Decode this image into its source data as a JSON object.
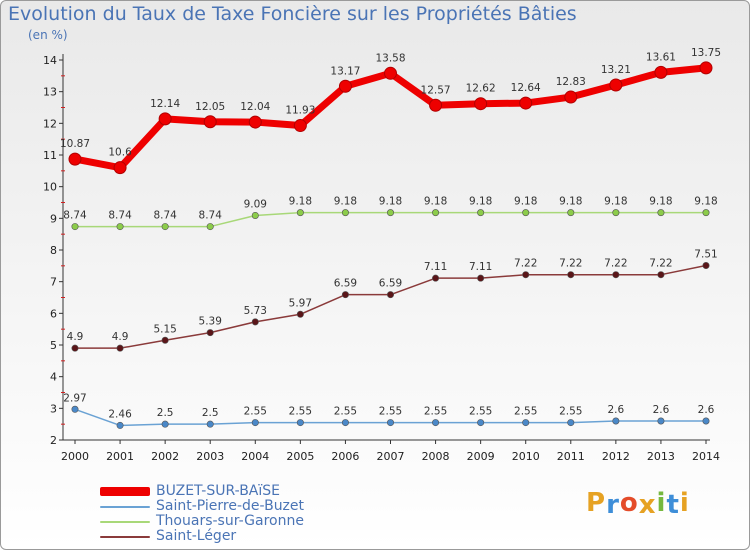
{
  "title": "Evolution du Taux de Taxe Foncière sur les Propriétés Bâties",
  "subtitle": "(en %)",
  "logo": {
    "letters": [
      "P",
      "r",
      "o",
      "x",
      "i",
      "t",
      "i"
    ],
    "colors": [
      "#e6a223",
      "#3e8ed8",
      "#e44c2a",
      "#e6a223",
      "#76b83e",
      "#3e8ed8",
      "#e6a223"
    ]
  },
  "chart_data": {
    "type": "line",
    "title": "Evolution du Taux de Taxe Foncière sur les Propriétés Bâties",
    "ylabel": "(en %)",
    "xlabel": "",
    "x": [
      "2000",
      "2001",
      "2002",
      "2003",
      "2004",
      "2005",
      "2006",
      "2007",
      "2008",
      "2009",
      "2010",
      "2011",
      "2012",
      "2013",
      "2014"
    ],
    "ylim": [
      2,
      14
    ],
    "yticks": [
      "2",
      "3",
      "4",
      "5",
      "6",
      "7",
      "8",
      "9",
      "10",
      "11",
      "12",
      "13",
      "14"
    ],
    "grid": false,
    "legend_position": "bottom-left",
    "series": [
      {
        "name": "BUZET-SUR-BAïSE",
        "color": "#ee0000",
        "marker_color": "#ee0000",
        "values": [
          10.87,
          10.6,
          12.14,
          12.05,
          12.04,
          11.93,
          13.17,
          13.58,
          12.57,
          12.62,
          12.64,
          12.83,
          13.21,
          13.61,
          13.75
        ],
        "labels": [
          "10.87",
          "10.6",
          "12.14",
          "12.05",
          "12.04",
          "11.93",
          "13.17",
          "13.58",
          "12.57",
          "12.62",
          "12.64",
          "12.83",
          "13.21",
          "13.61",
          "13.75"
        ]
      },
      {
        "name": "Saint-Pierre-de-Buzet",
        "color": "#6aa2d4",
        "marker_color": "#4a88c8",
        "values": [
          2.97,
          2.46,
          2.5,
          2.5,
          2.55,
          2.55,
          2.55,
          2.55,
          2.55,
          2.55,
          2.55,
          2.55,
          2.6,
          2.6,
          2.6
        ],
        "labels": [
          "2.97",
          "2.46",
          "2.5",
          "2.5",
          "2.55",
          "2.55",
          "2.55",
          "2.55",
          "2.55",
          "2.55",
          "2.55",
          "2.55",
          "2.6",
          "2.6",
          "2.6"
        ]
      },
      {
        "name": "Thouars-sur-Garonne",
        "color": "#a8d878",
        "marker_color": "#8ccc4a",
        "values": [
          8.74,
          8.74,
          8.74,
          8.74,
          9.09,
          9.18,
          9.18,
          9.18,
          9.18,
          9.18,
          9.18,
          9.18,
          9.18,
          9.18,
          9.18
        ],
        "labels": [
          "8.74",
          "8.74",
          "8.74",
          "8.74",
          "9.09",
          "9.18",
          "9.18",
          "9.18",
          "9.18",
          "9.18",
          "9.18",
          "9.18",
          "9.18",
          "9.18",
          "9.18"
        ]
      },
      {
        "name": "Saint-Léger",
        "color": "#8a3a3a",
        "marker_color": "#5a1518",
        "values": [
          4.9,
          4.9,
          5.15,
          5.39,
          5.73,
          5.97,
          6.59,
          6.59,
          7.11,
          7.11,
          7.22,
          7.22,
          7.22,
          7.22,
          7.51
        ],
        "labels": [
          "4.9",
          "4.9",
          "5.15",
          "5.39",
          "5.73",
          "5.97",
          "6.59",
          "6.59",
          "7.11",
          "7.11",
          "7.22",
          "7.22",
          "7.22",
          "7.22",
          "7.51"
        ]
      }
    ]
  }
}
